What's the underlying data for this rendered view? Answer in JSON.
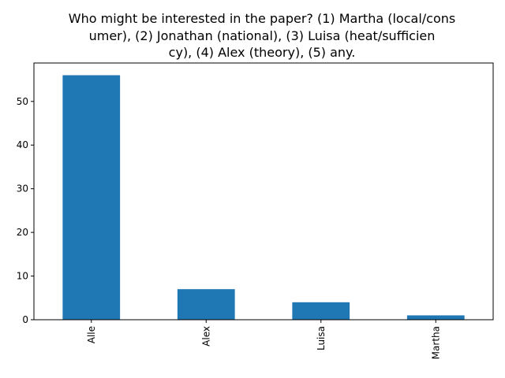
{
  "chart_data": {
    "type": "bar",
    "title_lines": [
      "Who might be interested in the paper? (1) Martha (local/cons",
      "umer), (2) Jonathan (national), (3) Luisa (heat/sufficien",
      "cy), (4) Alex (theory), (5) any."
    ],
    "xlabel": "",
    "ylabel": "",
    "categories": [
      "Alle",
      "Alex",
      "Luisa",
      "Martha"
    ],
    "values": [
      56,
      7,
      4,
      1
    ],
    "ylim": [
      0,
      58.8
    ],
    "yticks": [
      0,
      10,
      20,
      30,
      40,
      50
    ],
    "bar_color": "#1f77b4",
    "grid": false,
    "legend": "none"
  }
}
